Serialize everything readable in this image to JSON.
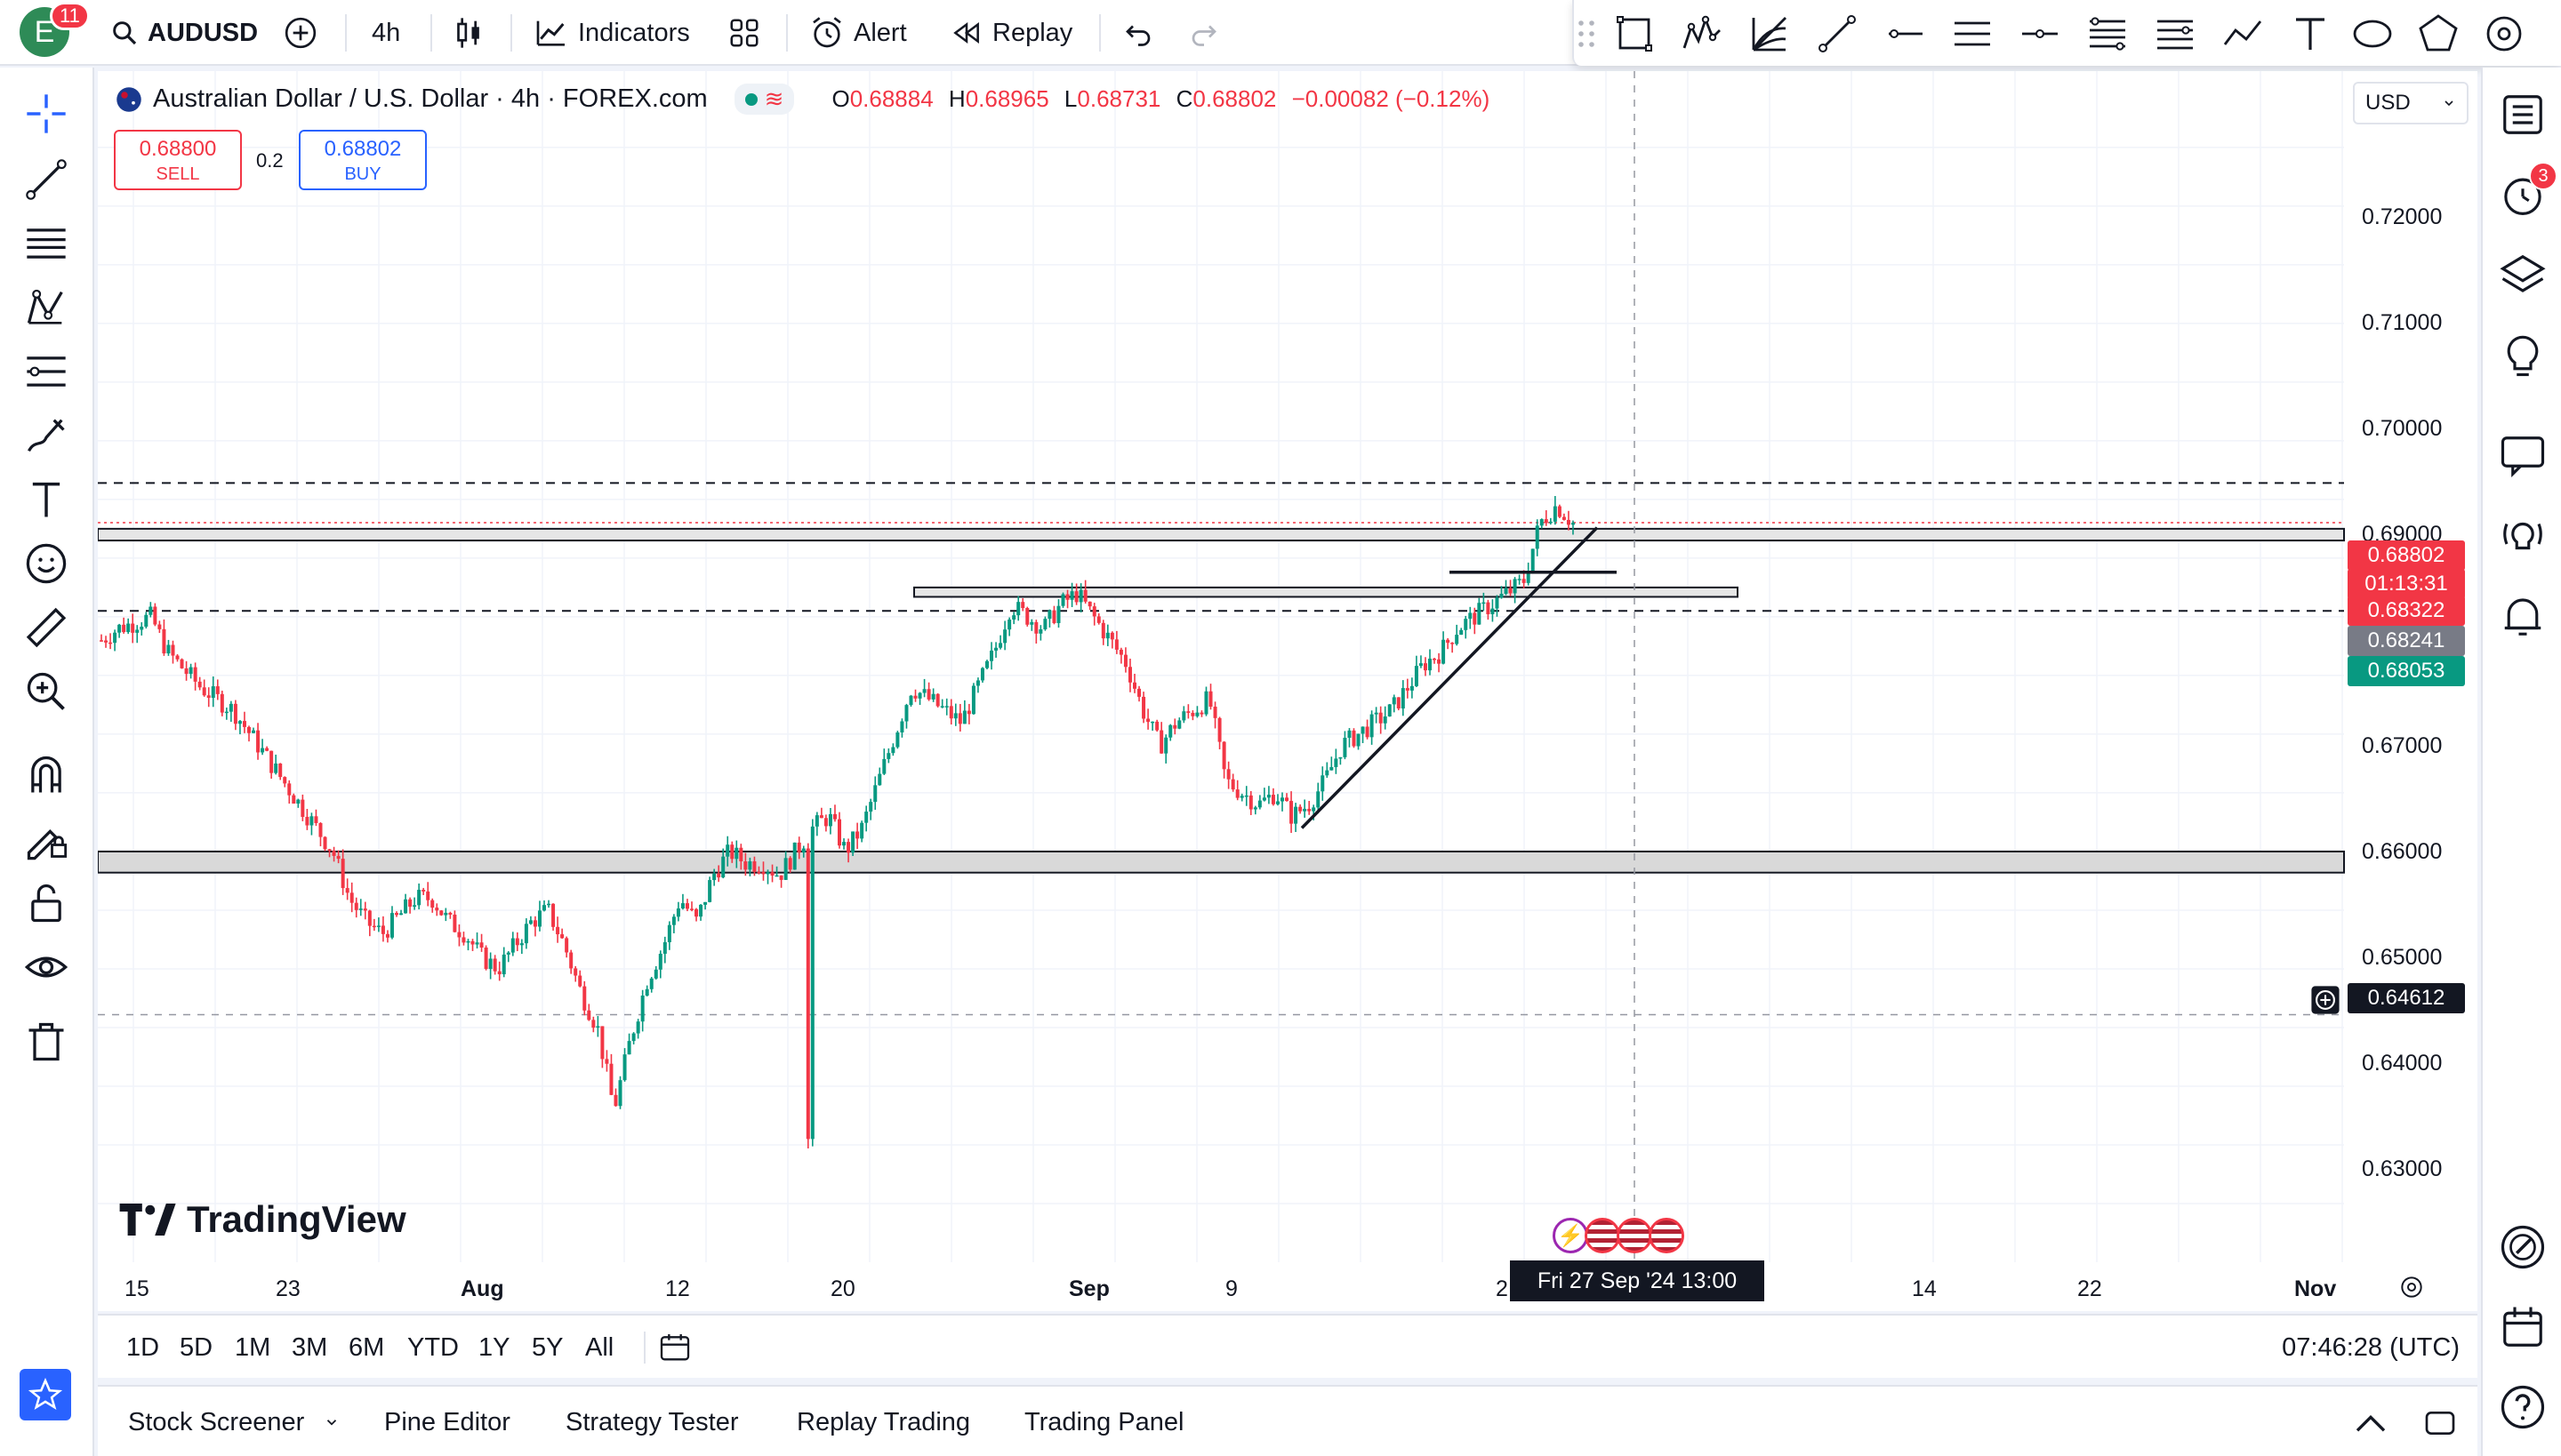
{
  "topbar": {
    "avatar_letter": "E",
    "notifications": "11",
    "symbol": "AUDUSD",
    "interval": "4h",
    "indicators_label": "Indicators",
    "alert_label": "Alert",
    "replay_label": "Replay"
  },
  "legend": {
    "title": "Australian Dollar / U.S. Dollar · 4h · FOREX.com",
    "o_label": "O",
    "o": "0.68884",
    "h_label": "H",
    "h": "0.68965",
    "l_label": "L",
    "l": "0.68731",
    "c_label": "C",
    "c": "0.68802",
    "change": "−0.00082 (−0.12%)"
  },
  "trade": {
    "sell_price": "0.68800",
    "sell_label": "SELL",
    "spread": "0.2",
    "buy_price": "0.68802",
    "buy_label": "BUY"
  },
  "currency": "USD",
  "brand": "TradingView",
  "price_scale": [
    "0.72000",
    "0.71000",
    "0.70000",
    "0.69000",
    "0.67000",
    "0.66000",
    "0.65000",
    "0.64000",
    "0.63000"
  ],
  "price_labels": {
    "last": "0.68802",
    "countdown": "01:13:31",
    "red2": "0.68322",
    "gray": "0.68241",
    "green": "0.68053",
    "cursor": "0.64612"
  },
  "time_axis": [
    "15",
    "23",
    "Aug",
    "12",
    "20",
    "Sep",
    "9",
    "2",
    "14",
    "22",
    "Nov"
  ],
  "time_cursor": "Fri 27 Sep '24   13:00",
  "ranges": [
    "1D",
    "5D",
    "1M",
    "3M",
    "6M",
    "YTD",
    "1Y",
    "5Y",
    "All"
  ],
  "clock": "07:46:28 (UTC)",
  "bottom_tabs": [
    "Stock Screener",
    "Pine Editor",
    "Strategy Tester",
    "Replay Trading",
    "Trading Panel"
  ],
  "right_badge": "3",
  "colors": {
    "up": "#089981",
    "down": "#f23645",
    "accent": "#2962ff"
  },
  "chart_data": {
    "type": "candlestick",
    "title": "Australian Dollar / U.S. Dollar · 4h · FOREX.com",
    "ylim": [
      0.625,
      0.7265
    ],
    "path_close": [
      [
        0.678,
        0.679
      ],
      [
        0.6795,
        0.68
      ],
      [
        0.677,
        0.6755
      ],
      [
        0.674,
        0.673
      ],
      [
        0.672,
        0.67
      ],
      [
        0.668,
        0.666
      ],
      [
        0.664,
        0.662
      ],
      [
        0.66,
        0.656
      ],
      [
        0.654,
        0.653
      ],
      [
        0.6545,
        0.656
      ],
      [
        0.656,
        0.654
      ],
      [
        0.653,
        0.651
      ],
      [
        0.65,
        0.652
      ],
      [
        0.654,
        0.655
      ],
      [
        0.652,
        0.648
      ],
      [
        0.645,
        0.638
      ],
      [
        0.644,
        0.649
      ],
      [
        0.652,
        0.656
      ],
      [
        0.654,
        0.658
      ],
      [
        0.66,
        0.659
      ],
      [
        0.659,
        0.658
      ],
      [
        0.66,
        0.662
      ],
      [
        0.663,
        0.66
      ],
      [
        0.662,
        0.666
      ],
      [
        0.67,
        0.674
      ],
      [
        0.673,
        0.672
      ],
      [
        0.671,
        0.674
      ],
      [
        0.677,
        0.681
      ],
      [
        0.68,
        0.679
      ],
      [
        0.681,
        0.682
      ],
      [
        0.68,
        0.678
      ],
      [
        0.676,
        0.672
      ],
      [
        0.669,
        0.671
      ],
      [
        0.672,
        0.673
      ],
      [
        0.666,
        0.665
      ],
      [
        0.664,
        0.665
      ],
      [
        0.663,
        0.664
      ],
      [
        0.666,
        0.669
      ],
      [
        0.67,
        0.671
      ],
      [
        0.672,
        0.674
      ],
      [
        0.676,
        0.677
      ],
      [
        0.679,
        0.68
      ],
      [
        0.681,
        0.682
      ],
      [
        0.683,
        0.688
      ],
      [
        0.6895,
        0.688
      ]
    ],
    "support_zones": [
      0.682,
      0.6596
    ],
    "resistance_zone": 0.687,
    "dashed_levels": [
      0.6914,
      0.6805,
      0.6461
    ]
  }
}
